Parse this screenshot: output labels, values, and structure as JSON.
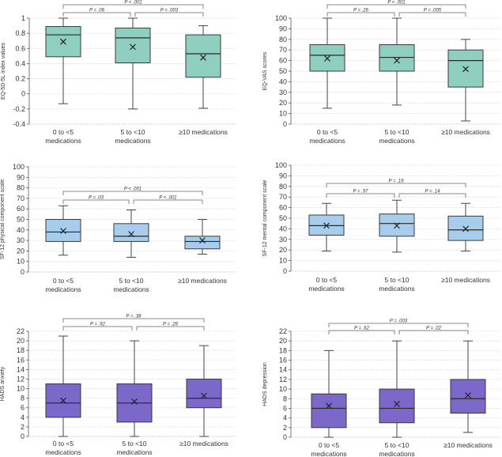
{
  "chart_data": [
    {
      "type": "box",
      "ylabel": "EQ-5D-5L index values",
      "ylim": [
        -0.4,
        1
      ],
      "ytick_step": 0.2,
      "ytick_labels": [
        "-0.4",
        "-0.2",
        "0",
        "0.2",
        "0.4",
        "0.6",
        "0.8",
        "1"
      ],
      "categories": [
        [
          "0 to <5",
          "medications"
        ],
        [
          "5 to <10",
          "medications"
        ],
        [
          "≥10 medications"
        ]
      ],
      "groups": [
        {
          "min": -0.13,
          "q1": 0.49,
          "median": 0.78,
          "q3": 0.89,
          "max": 1.0,
          "mean": 0.69
        },
        {
          "min": -0.2,
          "q1": 0.41,
          "median": 0.74,
          "q3": 0.87,
          "max": 1.0,
          "mean": 0.62
        },
        {
          "min": -0.19,
          "q1": 0.22,
          "median": 0.53,
          "q3": 0.78,
          "max": 0.9,
          "mean": 0.48
        }
      ],
      "p_values": {
        "g1_g2": "P = .06",
        "g2_g3": "P = .003",
        "g1_g3": "P < .001"
      },
      "color": "#8fcfc0"
    },
    {
      "type": "box",
      "ylabel": "EQ-VAS scores",
      "ylim": [
        0,
        100
      ],
      "ytick_step": 10,
      "ytick_labels": [
        "0",
        "10",
        "20",
        "30",
        "40",
        "50",
        "60",
        "70",
        "80",
        "90",
        "100"
      ],
      "categories": [
        [
          "0 to <5",
          "medications"
        ],
        [
          "5 to <10",
          "medications"
        ],
        [
          "≥10 medications"
        ]
      ],
      "groups": [
        {
          "min": 15,
          "q1": 50,
          "median": 65,
          "q3": 75,
          "max": 100,
          "mean": 62
        },
        {
          "min": 18,
          "q1": 50,
          "median": 63,
          "q3": 75,
          "max": 100,
          "mean": 60
        },
        {
          "min": 3,
          "q1": 35,
          "median": 60,
          "q3": 70,
          "max": 80,
          "mean": 52
        }
      ],
      "p_values": {
        "g1_g2": "P = .26",
        "g2_g3": "P = .005",
        "g1_g3": "P < .001"
      },
      "color": "#8fcfc0"
    },
    {
      "type": "box",
      "ylabel": "SF-12 physical component scale",
      "ylim": [
        0,
        100
      ],
      "ytick_step": 10,
      "ytick_labels": [
        "0",
        "10",
        "20",
        "30",
        "40",
        "50",
        "60",
        "70",
        "80",
        "90",
        "100"
      ],
      "categories": [
        [
          "0 to <5",
          "medications"
        ],
        [
          "5 to <10",
          "medications"
        ],
        [
          "≥10 medications"
        ]
      ],
      "groups": [
        {
          "min": 16,
          "q1": 29,
          "median": 38,
          "q3": 50,
          "max": 63,
          "mean": 39
        },
        {
          "min": 14,
          "q1": 29,
          "median": 34,
          "q3": 46,
          "max": 59,
          "mean": 36
        },
        {
          "min": 17,
          "q1": 22,
          "median": 29,
          "q3": 34,
          "max": 50,
          "mean": 30
        }
      ],
      "p_values": {
        "g1_g2": "P = .03",
        "g2_g3": "P < .001",
        "g1_g3": "P < .001"
      },
      "color": "#a8cdec"
    },
    {
      "type": "box",
      "ylabel": "SF-12 mental component scale",
      "ylim": [
        0,
        100
      ],
      "ytick_step": 10,
      "ytick_labels": [
        "0",
        "10",
        "20",
        "30",
        "40",
        "50",
        "60",
        "70",
        "80",
        "90",
        "100"
      ],
      "categories": [
        [
          "0 to <5",
          "medications"
        ],
        [
          "5 to <10",
          "medications"
        ],
        [
          "≥10 medications"
        ]
      ],
      "groups": [
        {
          "min": 19,
          "q1": 34,
          "median": 43,
          "q3": 53,
          "max": 64,
          "mean": 43
        },
        {
          "min": 18,
          "q1": 33,
          "median": 45,
          "q3": 54,
          "max": 67,
          "mean": 43
        },
        {
          "min": 19,
          "q1": 29,
          "median": 39,
          "q3": 52,
          "max": 64,
          "mean": 40
        }
      ],
      "p_values": {
        "g1_g2": "P = .97",
        "g2_g3": "P = .14",
        "g1_g3": "P = .19"
      },
      "color": "#a8cdec"
    },
    {
      "type": "box",
      "ylabel": "HADS anxiety",
      "ylim": [
        0,
        22
      ],
      "ytick_step": 2,
      "ytick_labels": [
        "0",
        "2",
        "4",
        "6",
        "8",
        "10",
        "12",
        "14",
        "16",
        "18",
        "20",
        "22"
      ],
      "categories": [
        [
          "0 to <5",
          "medications"
        ],
        [
          "5 to <10",
          "medications"
        ],
        [
          "≥10 medications"
        ]
      ],
      "groups": [
        {
          "min": 0,
          "q1": 4,
          "median": 7,
          "q3": 11,
          "max": 21,
          "mean": 7.5
        },
        {
          "min": 0,
          "q1": 3,
          "median": 7,
          "q3": 11,
          "max": 20,
          "mean": 7.3
        },
        {
          "min": 0,
          "q1": 6,
          "median": 8,
          "q3": 12,
          "max": 19,
          "mean": 8.5
        }
      ],
      "p_values": {
        "g1_g2": "P = .92",
        "g2_g3": "P = .26",
        "g1_g3": "P = .38"
      },
      "color": "#7b68c8"
    },
    {
      "type": "box",
      "ylabel": "HADS depression",
      "ylim": [
        0,
        22
      ],
      "ytick_step": 2,
      "ytick_labels": [
        "0",
        "2",
        "4",
        "6",
        "8",
        "10",
        "12",
        "14",
        "16",
        "18",
        "20",
        "22"
      ],
      "categories": [
        [
          "0 to <5",
          "medications"
        ],
        [
          "5 to <10",
          "medications"
        ],
        [
          "≥10 medications"
        ]
      ],
      "groups": [
        {
          "min": 0,
          "q1": 2,
          "median": 6,
          "q3": 9,
          "max": 18,
          "mean": 6.5
        },
        {
          "min": 0,
          "q1": 3,
          "median": 6,
          "q3": 10,
          "max": 20,
          "mean": 6.9
        },
        {
          "min": 1,
          "q1": 5,
          "median": 8,
          "q3": 12,
          "max": 20,
          "mean": 8.7
        }
      ],
      "p_values": {
        "g1_g2": "P = .62",
        "g2_g3": "P = .02",
        "g1_g3": "P = .003"
      },
      "color": "#7b68c8"
    }
  ]
}
